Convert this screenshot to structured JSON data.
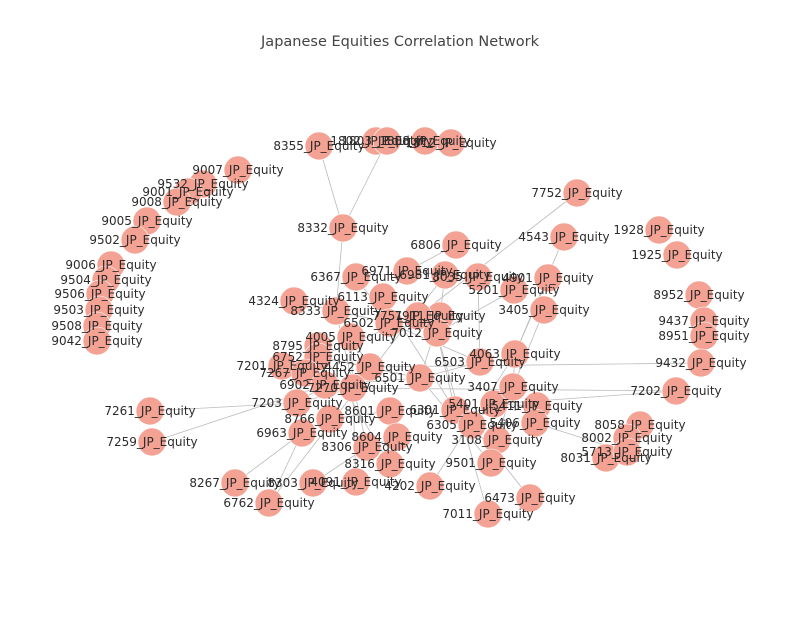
{
  "title": "Japanese Equities Correlation Network",
  "colors": {
    "node": "#f4a294",
    "edge": "#bbbbbb",
    "label": "#2b2b2b"
  },
  "nodes": [
    "1802_JP_Equity",
    "1803_JP_Equity",
    "1808_JP_Equity",
    "1812_JP_Equity",
    "8355_JP_Equity",
    "8332_JP_Equity",
    "9007_JP_Equity",
    "9532_JP_Equity",
    "9001_JP_Equity",
    "9008_JP_Equity",
    "9005_JP_Equity",
    "9502_JP_Equity",
    "9006_JP_Equity",
    "9504_JP_Equity",
    "9506_JP_Equity",
    "9503_JP_Equity",
    "9508_JP_Equity",
    "9042_JP_Equity",
    "7752_JP_Equity",
    "4543_JP_Equity",
    "1928_JP_Equity",
    "1925_JP_Equity",
    "6806_JP_Equity",
    "6367_JP_Equity",
    "6971_JP_Equity",
    "6981_JP_Equity",
    "6113_JP_Equity",
    "8035_JP_Equity",
    "5201_JP_Equity",
    "4901_JP_Equity",
    "3405_JP_Equity",
    "4324_JP_Equity",
    "8333_JP_Equity",
    "6502_JP_Equity",
    "4005_JP_Equity",
    "7911_JP_Equity",
    "8795_JP_Equity",
    "7201_JP_Equity",
    "6752_JP_Equity",
    "7267_JP_Equity",
    "6902_JP_Equity",
    "7202_JP_Equity",
    "7261_JP_Equity",
    "7259_JP_Equity",
    "7203_JP_Equity",
    "8766_JP_Equity",
    "6963_JP_Equity",
    "8058_JP_Equity",
    "8002_JP_Equity",
    "8031_JP_Equity",
    "8952_JP_Equity",
    "9437_JP_Equity",
    "8951_JP_Equity",
    "9432_JP_Equity",
    "8267_JP_Equity",
    "8303_JP_Equity",
    "6762_JP_Equity",
    "4091_JP_Equity",
    "8306_JP_Equity",
    "3108_JP_Equity",
    "9501_JP_Equity",
    "4202_JP_Equity",
    "6473_JP_Equity",
    "7011_JP_Equity",
    "5713_JP_Equity",
    "5401_JP_Equity",
    "7751_JP_Equity",
    "7012_JP_Equity",
    "4063_JP_Equity",
    "5411_JP_Equity",
    "3407_JP_Equity",
    "8601_JP_Equity",
    "8316_JP_Equity",
    "5406_JP_Equity",
    "6301_JP_Equity",
    "6501_JP_Equity",
    "4452_JP_Equity",
    "6503_JP_Equity",
    "7270_JP_Equity",
    "8604_JP_Equity",
    "6305_JP_Equity"
  ],
  "edges": [
    [
      "8355_JP_Equity",
      "8332_JP_Equity"
    ],
    [
      "1803_JP_Equity",
      "8332_JP_Equity"
    ],
    [
      "8332_JP_Equity",
      "8333_JP_Equity"
    ],
    [
      "7752_JP_Equity",
      "7751_JP_Equity"
    ],
    [
      "4543_JP_Equity",
      "4063_JP_Equity"
    ],
    [
      "6806_JP_Equity",
      "6971_JP_Equity"
    ],
    [
      "6367_JP_Equity",
      "6502_JP_Equity"
    ],
    [
      "6971_JP_Equity",
      "6981_JP_Equity"
    ],
    [
      "6981_JP_Equity",
      "7911_JP_Equity"
    ],
    [
      "8035_JP_Equity",
      "6503_JP_Equity"
    ],
    [
      "5201_JP_Equity",
      "7012_JP_Equity"
    ],
    [
      "4901_JP_Equity",
      "4063_JP_Equity"
    ],
    [
      "3405_JP_Equity",
      "3407_JP_Equity"
    ],
    [
      "4324_JP_Equity",
      "6502_JP_Equity"
    ],
    [
      "6502_JP_Equity",
      "6503_JP_Equity"
    ],
    [
      "4005_JP_Equity",
      "4452_JP_Equity"
    ],
    [
      "8795_JP_Equity",
      "8316_JP_Equity"
    ],
    [
      "7201_JP_Equity",
      "7270_JP_Equity"
    ],
    [
      "6752_JP_Equity",
      "6501_JP_Equity"
    ],
    [
      "7267_JP_Equity",
      "7203_JP_Equity"
    ],
    [
      "6902_JP_Equity",
      "7203_JP_Equity"
    ],
    [
      "7202_JP_Equity",
      "5401_JP_Equity"
    ],
    [
      "7261_JP_Equity",
      "7203_JP_Equity"
    ],
    [
      "7259_JP_Equity",
      "6902_JP_Equity"
    ],
    [
      "7203_JP_Equity",
      "7270_JP_Equity"
    ],
    [
      "8766_JP_Equity",
      "8601_JP_Equity"
    ],
    [
      "6963_JP_Equity",
      "6762_JP_Equity"
    ],
    [
      "8058_JP_Equity",
      "8031_JP_Equity"
    ],
    [
      "8002_JP_Equity",
      "8058_JP_Equity"
    ],
    [
      "8031_JP_Equity",
      "5713_JP_Equity"
    ],
    [
      "9432_JP_Equity",
      "4452_JP_Equity"
    ],
    [
      "8267_JP_Equity",
      "6963_JP_Equity"
    ],
    [
      "8303_JP_Equity",
      "8306_JP_Equity"
    ],
    [
      "6762_JP_Equity",
      "6981_JP_Equity"
    ],
    [
      "4091_JP_Equity",
      "4005_JP_Equity"
    ],
    [
      "8306_JP_Equity",
      "8316_JP_Equity"
    ],
    [
      "3108_JP_Equity",
      "3407_JP_Equity"
    ],
    [
      "9501_JP_Equity",
      "6501_JP_Equity"
    ],
    [
      "4202_JP_Equity",
      "4063_JP_Equity"
    ],
    [
      "6473_JP_Equity",
      "6305_JP_Equity"
    ],
    [
      "7011_JP_Equity",
      "7012_JP_Equity"
    ],
    [
      "5713_JP_Equity",
      "5406_JP_Equity"
    ],
    [
      "5401_JP_Equity",
      "5411_JP_Equity"
    ],
    [
      "5411_JP_Equity",
      "5406_JP_Equity"
    ],
    [
      "8601_JP_Equity",
      "8604_JP_Equity"
    ],
    [
      "6301_JP_Equity",
      "6305_JP_Equity"
    ],
    [
      "6501_JP_Equity",
      "6503_JP_Equity"
    ],
    [
      "7751_JP_Equity",
      "6752_JP_Equity"
    ],
    [
      "7012_JP_Equity",
      "6301_JP_Equity"
    ],
    [
      "8316_JP_Equity",
      "8601_JP_Equity"
    ],
    [
      "4063_JP_Equity",
      "3407_JP_Equity"
    ],
    [
      "7911_JP_Equity",
      "6501_JP_Equity"
    ],
    [
      "7270_JP_Equity",
      "7202_JP_Equity"
    ],
    [
      "6305_JP_Equity",
      "5401_JP_Equity"
    ],
    [
      "8604_JP_Equity",
      "8306_JP_Equity"
    ],
    [
      "4452_JP_Equity",
      "6752_JP_Equity"
    ],
    [
      "6113_JP_Equity",
      "6301_JP_Equity"
    ],
    [
      "8333_JP_Equity",
      "8306_JP_Equity"
    ],
    [
      "6902_JP_Equity",
      "6501_JP_Equity"
    ],
    [
      "7201_JP_Equity",
      "7267_JP_Equity"
    ]
  ]
}
